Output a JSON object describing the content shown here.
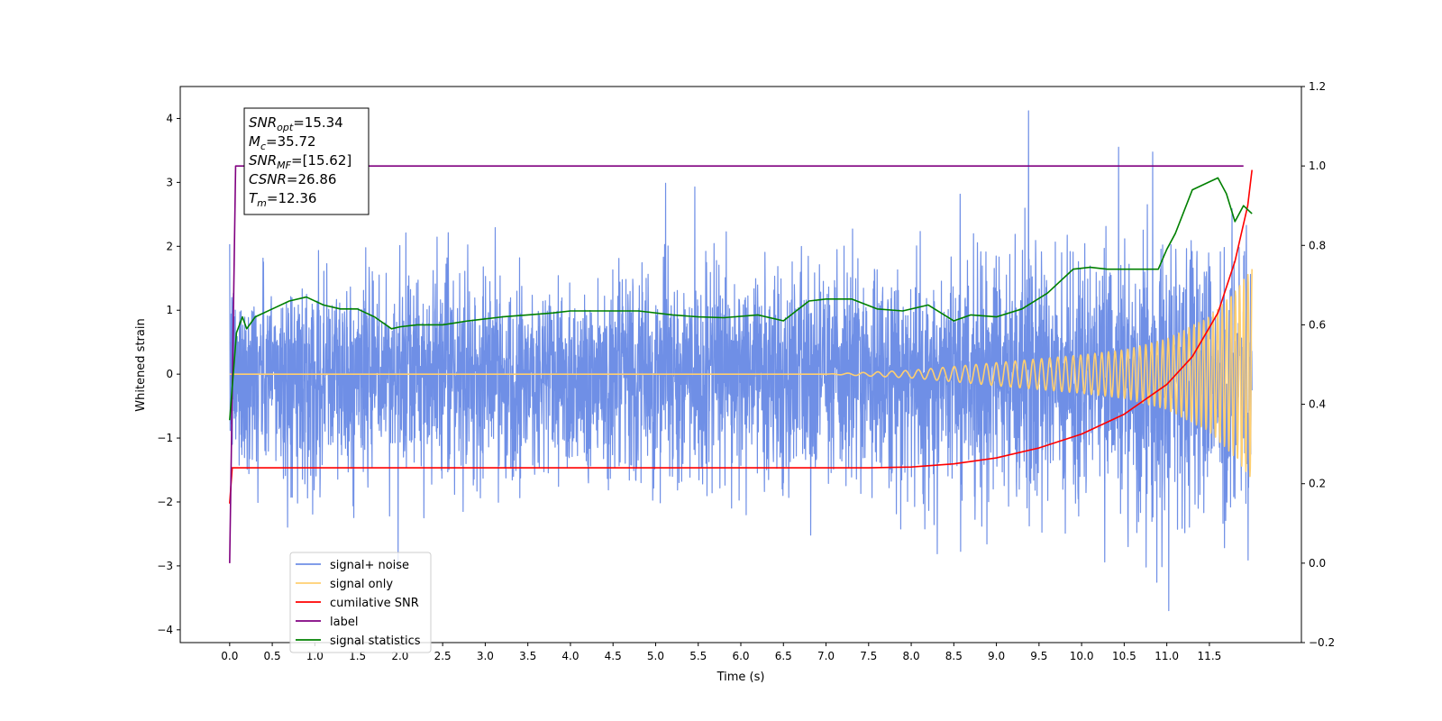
{
  "chart_data": {
    "type": "line",
    "title": "",
    "xlabel": "Time (s)",
    "ylabel": "Whitened strain",
    "xlim": [
      -0.58,
      12.58
    ],
    "ylim": [
      -4.2,
      4.5
    ],
    "y2lim": [
      -0.2,
      1.2
    ],
    "x_ticks": [
      "0.0",
      "0.5",
      "1.0",
      "1.5",
      "2.0",
      "2.5",
      "3.0",
      "3.5",
      "4.0",
      "4.5",
      "5.0",
      "5.5",
      "6.0",
      "6.5",
      "7.0",
      "7.5",
      "8.0",
      "8.5",
      "9.0",
      "9.5",
      "10.0",
      "10.5",
      "11.0",
      "11.5"
    ],
    "y_ticks": [
      "4",
      "3",
      "2",
      "1",
      "0",
      "−1",
      "−2",
      "−3",
      "−4"
    ],
    "y2_ticks": [
      "1.2",
      "1.0",
      "0.8",
      "0.6",
      "0.4",
      "0.2",
      "0.0",
      "−0.2"
    ],
    "grid": false,
    "legend_position": "lower-left",
    "annotation": {
      "lines": [
        {
          "sym": "SNR",
          "sub": "opt",
          "rest": "=15.34"
        },
        {
          "sym": "M",
          "sub": "c",
          "rest": "=35.72"
        },
        {
          "sym": "SNR",
          "sub": "MF",
          "rest": "=[15.62]"
        },
        {
          "sym": "CSNR",
          "sub": "",
          "rest": "=26.86"
        },
        {
          "sym": "T",
          "sub": "m",
          "rest": "=12.36"
        }
      ]
    },
    "series": [
      {
        "name": "signal+ noise",
        "color": "#6f8fe6",
        "axis": "left",
        "kind": "noise",
        "duration": 12.0,
        "sigma_base": 0.7,
        "sigma_growth": 0.35,
        "peak_max": 4.12,
        "peak_min": -3.7
      },
      {
        "name": "signal only",
        "color": "#ffcf70",
        "axis": "left",
        "kind": "chirp",
        "x": [
          0,
          7.0,
          8.0,
          9.0,
          10.0,
          10.5,
          11.0,
          11.5,
          11.8,
          12.0
        ],
        "amplitude": [
          0,
          0,
          0.06,
          0.18,
          0.3,
          0.38,
          0.55,
          0.9,
          1.3,
          1.65
        ]
      },
      {
        "name": "cumilative SNR",
        "color": "#ff0000",
        "axis": "right",
        "x": [
          0,
          0.03,
          7.5,
          8.0,
          8.5,
          9.0,
          9.5,
          10.0,
          10.5,
          11.0,
          11.3,
          11.6,
          11.8,
          11.95,
          12.0
        ],
        "y": [
          0.15,
          0.24,
          0.24,
          0.242,
          0.25,
          0.265,
          0.29,
          0.325,
          0.375,
          0.45,
          0.52,
          0.63,
          0.76,
          0.9,
          0.99
        ]
      },
      {
        "name": "label",
        "color": "#800080",
        "axis": "right",
        "x": [
          0,
          0.07,
          11.9
        ],
        "y": [
          0.0,
          1.0,
          1.0
        ]
      },
      {
        "name": "signal statistics",
        "color": "#008000",
        "axis": "right",
        "x": [
          0,
          0.08,
          0.15,
          0.2,
          0.3,
          0.5,
          0.7,
          0.9,
          1.1,
          1.3,
          1.5,
          1.7,
          1.9,
          2.0,
          2.2,
          2.5,
          2.8,
          3.2,
          3.5,
          3.8,
          4.0,
          4.4,
          4.8,
          5.2,
          5.5,
          5.8,
          6.2,
          6.5,
          6.8,
          7.0,
          7.3,
          7.6,
          7.9,
          8.2,
          8.5,
          8.7,
          9.0,
          9.3,
          9.6,
          9.9,
          10.1,
          10.3,
          10.6,
          10.9,
          11.0,
          11.1,
          11.3,
          11.5,
          11.6,
          11.7,
          11.8,
          11.9,
          12.0
        ],
        "y": [
          0.36,
          0.58,
          0.62,
          0.59,
          0.62,
          0.64,
          0.66,
          0.67,
          0.65,
          0.64,
          0.64,
          0.62,
          0.59,
          0.595,
          0.6,
          0.6,
          0.61,
          0.62,
          0.625,
          0.63,
          0.635,
          0.635,
          0.635,
          0.625,
          0.62,
          0.618,
          0.625,
          0.61,
          0.66,
          0.665,
          0.665,
          0.64,
          0.635,
          0.65,
          0.61,
          0.625,
          0.62,
          0.64,
          0.68,
          0.74,
          0.745,
          0.74,
          0.74,
          0.74,
          0.79,
          0.83,
          0.94,
          0.96,
          0.97,
          0.93,
          0.86,
          0.9,
          0.88
        ]
      }
    ]
  }
}
